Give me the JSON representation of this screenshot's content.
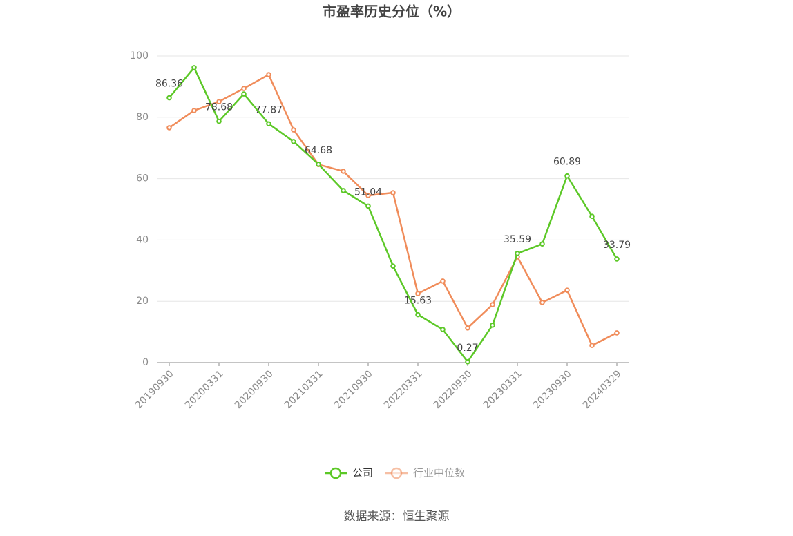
{
  "chart_data": {
    "type": "line",
    "title": "市盈率历史分位（%）",
    "source": "数据来源：恒生聚源",
    "categories": [
      "20190930",
      null,
      "20200331",
      null,
      "20200930",
      null,
      "20210331",
      null,
      "20210930",
      null,
      "20220331",
      null,
      "20220930",
      null,
      "20230331",
      null,
      "20230930",
      null,
      "20240329"
    ],
    "series": [
      {
        "name": "公司",
        "color": "#5cc827",
        "values": [
          86.36,
          96.2,
          78.68,
          87.6,
          77.87,
          72.1,
          64.68,
          56.1,
          51.04,
          31.5,
          15.63,
          10.8,
          0.27,
          12.2,
          35.59,
          38.7,
          60.89,
          47.7,
          33.79
        ]
      },
      {
        "name": "行业中位数",
        "color": "#f08c5a",
        "values": [
          76.6,
          82.2,
          85.1,
          89.4,
          93.9,
          75.9,
          64.6,
          62.4,
          54.5,
          55.4,
          22.5,
          26.6,
          11.3,
          18.9,
          34.5,
          19.6,
          23.6,
          5.6,
          9.7
        ]
      }
    ],
    "ylim": [
      0,
      100
    ],
    "yticks": [
      0,
      20,
      40,
      60,
      80,
      100
    ],
    "grid": true,
    "legend": "bottom"
  }
}
